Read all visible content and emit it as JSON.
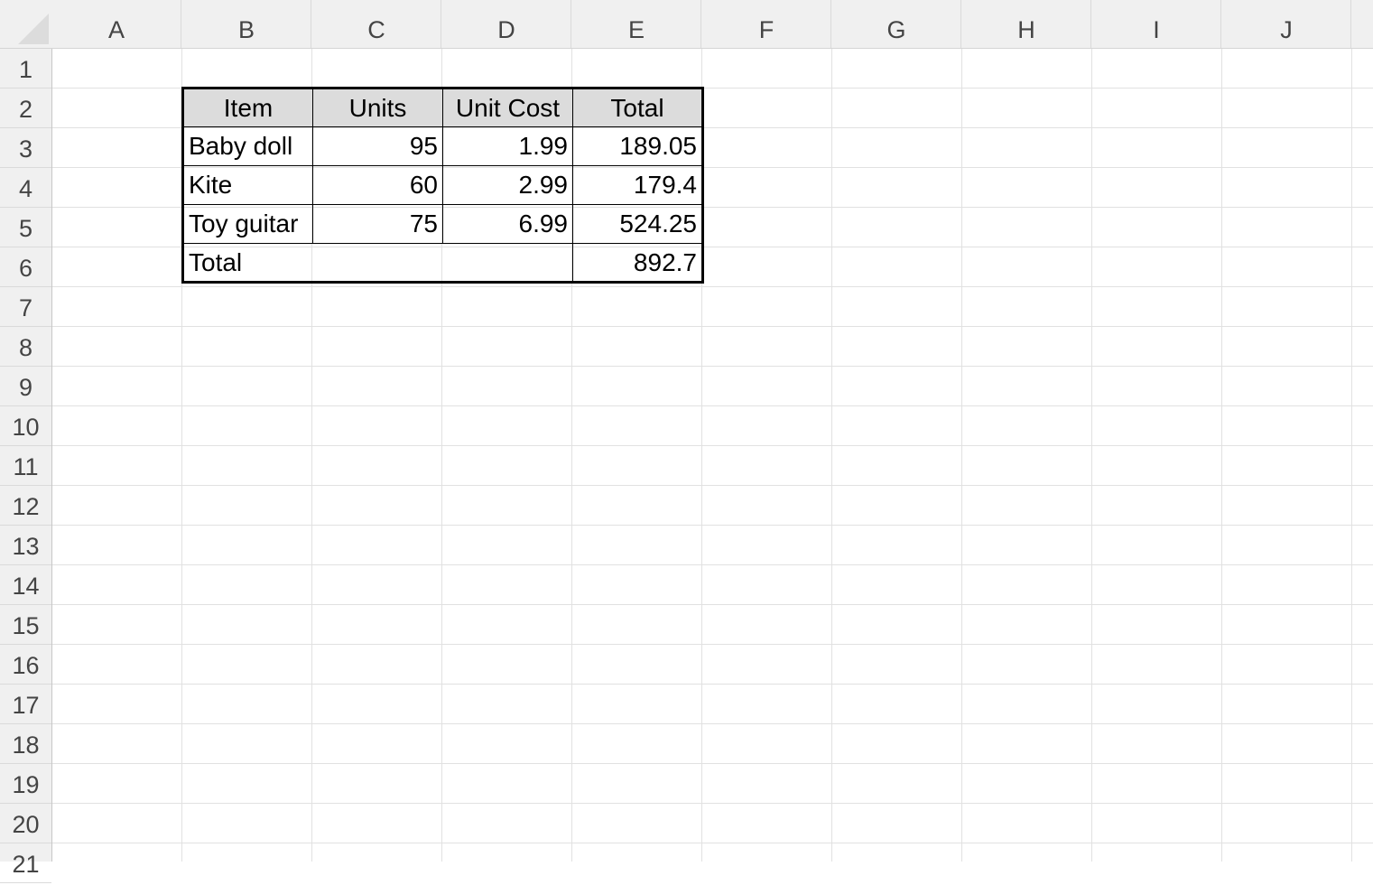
{
  "columns": [
    "A",
    "B",
    "C",
    "D",
    "E",
    "F",
    "G",
    "H",
    "I",
    "J"
  ],
  "rows": [
    "1",
    "2",
    "3",
    "4",
    "5",
    "6",
    "7",
    "8",
    "9",
    "10",
    "11",
    "12",
    "13",
    "14",
    "15",
    "16",
    "17",
    "18",
    "19",
    "20",
    "21"
  ],
  "table": {
    "headers": [
      "Item",
      "Units",
      "Unit Cost",
      "Total"
    ],
    "rows": [
      {
        "item": "Baby doll",
        "units": "95",
        "unit_cost": "1.99",
        "total": "189.05"
      },
      {
        "item": "Kite",
        "units": "60",
        "unit_cost": "2.99",
        "total": "179.4"
      },
      {
        "item": "Toy guitar",
        "units": "75",
        "unit_cost": "6.99",
        "total": "524.25"
      }
    ],
    "total_label": "Total",
    "total_value": "892.7"
  },
  "colors": {
    "header_fill": "#dcdcdc",
    "gridline": "#e1e1e1",
    "heading_bg": "#f0f0f0"
  }
}
